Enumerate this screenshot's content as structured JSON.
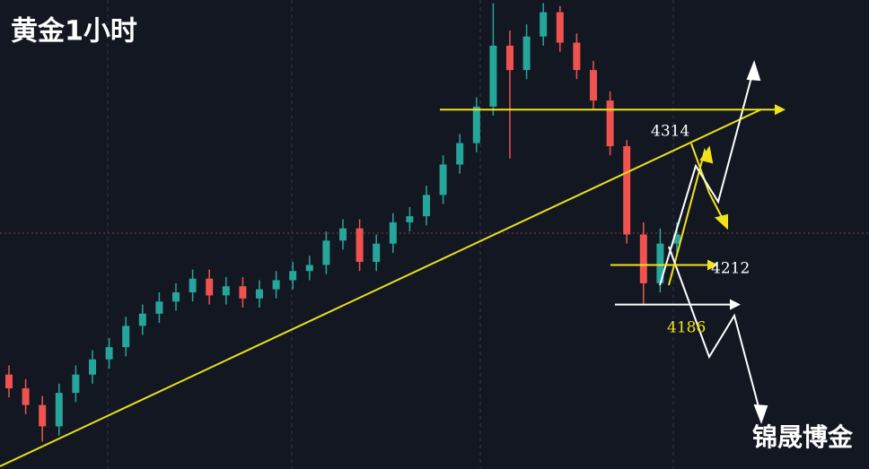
{
  "chart_data": {
    "type": "candlestick",
    "title": "黄金1小时",
    "watermark": "锦晟博金",
    "open": [
      4140,
      4131,
      4120,
      4106,
      4128,
      4140,
      4150,
      4158,
      4172,
      4180,
      4188,
      4194,
      4203,
      4192,
      4198,
      4190,
      4196,
      4202,
      4208,
      4212,
      4228,
      4236,
      4214,
      4226,
      4240,
      4244,
      4258,
      4278,
      4292,
      4316,
      4356,
      4340,
      4362,
      4378,
      4358,
      4340,
      4320,
      4290,
      4232,
      4200,
      4226
    ],
    "high": [
      4146,
      4137,
      4126,
      4134,
      4146,
      4156,
      4164,
      4178,
      4186,
      4194,
      4200,
      4209,
      4209,
      4204,
      4204,
      4202,
      4208,
      4214,
      4218,
      4234,
      4242,
      4242,
      4232,
      4246,
      4250,
      4264,
      4284,
      4298,
      4322,
      4384,
      4366,
      4370,
      4384,
      4382,
      4364,
      4346,
      4326,
      4294,
      4240,
      4236,
      4240
    ],
    "low": [
      4125,
      4114,
      4096,
      4100,
      4122,
      4134,
      4144,
      4152,
      4166,
      4174,
      4182,
      4188,
      4186,
      4186,
      4184,
      4184,
      4190,
      4196,
      4202,
      4206,
      4222,
      4208,
      4208,
      4220,
      4234,
      4238,
      4252,
      4272,
      4286,
      4310,
      4282,
      4334,
      4356,
      4352,
      4334,
      4314,
      4284,
      4226,
      4186,
      4194,
      4220
    ],
    "close": [
      4131,
      4120,
      4106,
      4128,
      4140,
      4150,
      4158,
      4172,
      4180,
      4188,
      4194,
      4203,
      4192,
      4198,
      4190,
      4196,
      4202,
      4208,
      4212,
      4228,
      4236,
      4214,
      4226,
      4240,
      4244,
      4258,
      4278,
      4292,
      4316,
      4356,
      4340,
      4362,
      4378,
      4358,
      4340,
      4320,
      4290,
      4232,
      4200,
      4226,
      4232
    ],
    "up_color": "#26a69a",
    "down_color": "#ef5350",
    "ylim": [
      4078,
      4386
    ],
    "levels": [
      4314,
      4212,
      4186
    ],
    "level_colors": [
      "#f2e21b",
      "#f2e21b",
      "#ffffff"
    ]
  }
}
